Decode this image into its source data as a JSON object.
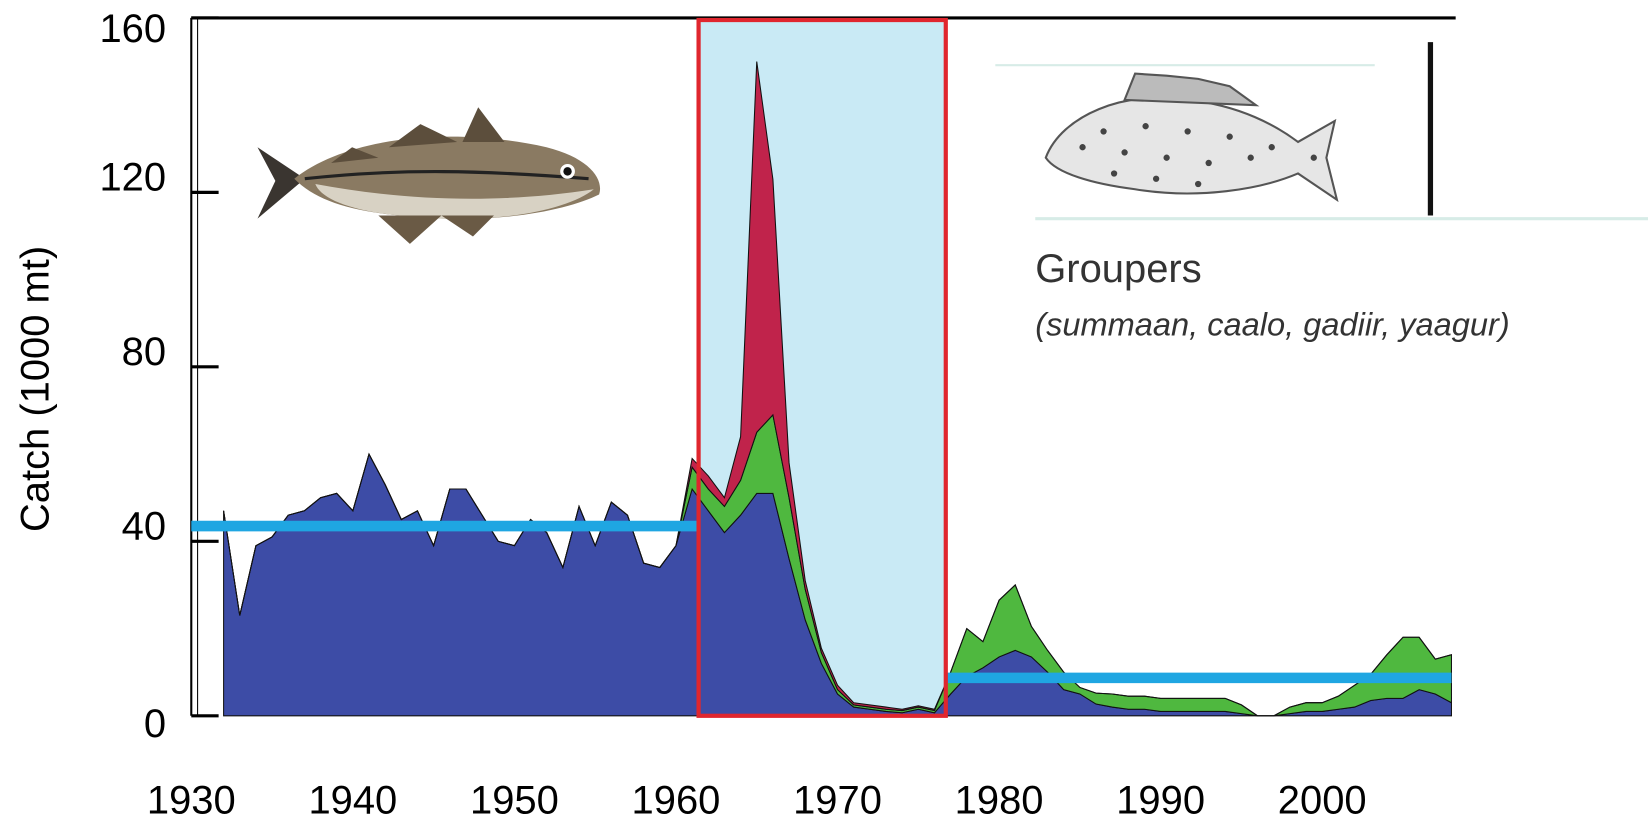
{
  "chart_data": {
    "type": "stacked_area",
    "y_label": "Catch (1000 mt)",
    "annotations": [
      "Groupers",
      "(summaan, caalo, gadiir, yaagur)"
    ],
    "x": [
      1932,
      1933,
      1934,
      1935,
      1936,
      1937,
      1938,
      1939,
      1940,
      1941,
      1942,
      1943,
      1944,
      1945,
      1946,
      1947,
      1948,
      1949,
      1950,
      1951,
      1952,
      1953,
      1954,
      1955,
      1956,
      1957,
      1958,
      1959,
      1960,
      1961,
      1962,
      1963,
      1964,
      1965,
      1966,
      1967,
      1968,
      1969,
      1970,
      1971,
      1972,
      1973,
      1974,
      1975,
      1976,
      1977,
      1978,
      1979,
      1980,
      1981,
      1982,
      1983,
      1984,
      1985,
      1986,
      1987,
      1988,
      1989,
      1990,
      1991,
      1992,
      1993,
      1994,
      1995,
      1996,
      1997,
      1998,
      1999,
      2000,
      2001,
      2002,
      2003,
      2004,
      2005,
      2006,
      2007,
      2008
    ],
    "series": [
      {
        "color": "#3d4ca6",
        "values": [
          47,
          23,
          39,
          41,
          46,
          47,
          50,
          51,
          47,
          60,
          53,
          45,
          47,
          39,
          52,
          52,
          46,
          40,
          39,
          45,
          42,
          34,
          48,
          39,
          49,
          46,
          35,
          34,
          39,
          52,
          47,
          42,
          46,
          51,
          51,
          36,
          22,
          12,
          5,
          2,
          1.5,
          1,
          0.7,
          1.5,
          0.7,
          5,
          9,
          11,
          13.5,
          15,
          13.5,
          10,
          6,
          5,
          2.7,
          2,
          1.5,
          1.5,
          1,
          1,
          1,
          1,
          1,
          0.5,
          0,
          0,
          0.5,
          1,
          1,
          1.5,
          2,
          3.5,
          4,
          4,
          6,
          5,
          3
        ]
      },
      {
        "color": "#4fb83f",
        "values": [
          0,
          0,
          0,
          0,
          0,
          0,
          0,
          0,
          0,
          0,
          0,
          0,
          0,
          0,
          0,
          0,
          0,
          0,
          0,
          0,
          0,
          0,
          0,
          0,
          0,
          0,
          0,
          0,
          0,
          5,
          5,
          6,
          8,
          14,
          18,
          14,
          7,
          2.5,
          1,
          0.5,
          0.5,
          0.5,
          0.5,
          0.5,
          0.5,
          5,
          11,
          6,
          13,
          15,
          7,
          5,
          4,
          1.5,
          2.5,
          3,
          3,
          3,
          3,
          3,
          3,
          3,
          3,
          2,
          0,
          0,
          1.5,
          2,
          2,
          3,
          5,
          6,
          10,
          14,
          12,
          8,
          11
        ]
      },
      {
        "color": "#c0234b",
        "values": [
          0,
          0,
          0,
          0,
          0,
          0,
          0,
          0,
          0,
          0,
          0,
          0,
          0,
          0,
          0,
          0,
          0,
          0,
          0,
          0,
          0,
          0,
          0,
          0,
          0,
          0,
          0,
          0,
          0,
          2,
          3,
          2,
          10,
          85,
          54,
          8,
          2,
          1,
          1,
          0.5,
          0.5,
          0.5,
          0.3,
          0.3,
          0.3,
          0,
          0,
          0,
          0,
          0,
          0,
          0,
          0,
          0,
          0,
          0,
          0,
          0,
          0,
          0,
          0,
          0,
          0,
          0,
          0,
          0,
          0,
          0,
          0,
          0,
          0,
          0,
          0,
          0,
          0,
          0,
          0
        ]
      }
    ],
    "xlim": [
      1930,
      2008
    ],
    "xticks": [
      1930,
      1940,
      1950,
      1960,
      1970,
      1980,
      1990,
      2000
    ],
    "ylim": [
      0,
      160
    ],
    "yticks": [
      0,
      40,
      80,
      120,
      160
    ],
    "highlight": {
      "from": 1961.4,
      "to": 1976.7,
      "fill": "#c9eaf5",
      "border": "#e0262e"
    },
    "reference_lines": [
      {
        "value": 43.5,
        "from": 1930,
        "to": 1961.4,
        "color": "#1fa6e2"
      },
      {
        "value": 8.7,
        "from": 1976.7,
        "to": 2008,
        "color": "#1fa6e2"
      }
    ]
  }
}
